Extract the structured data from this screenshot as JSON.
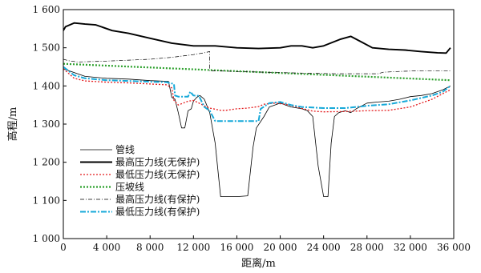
{
  "chart_data": {
    "type": "line",
    "xlabel": "距离/m",
    "ylabel": "高程/m",
    "xlim": [
      0,
      36000
    ],
    "ylim": [
      1000,
      1600
    ],
    "grid": false,
    "legend": "bottom-left",
    "x_ticks": [
      {
        "value": 0,
        "label": "0"
      },
      {
        "value": 4000,
        "label": "4 000"
      },
      {
        "value": 8000,
        "label": "8 000"
      },
      {
        "value": 12000,
        "label": "12 000"
      },
      {
        "value": 16000,
        "label": "16 000"
      },
      {
        "value": 20000,
        "label": "20 000"
      },
      {
        "value": 24000,
        "label": "24 000"
      },
      {
        "value": 28000,
        "label": "28 000"
      },
      {
        "value": 32000,
        "label": "32 000"
      },
      {
        "value": 36000,
        "label": "36 000"
      }
    ],
    "y_ticks": [
      {
        "value": 1000,
        "label": "1 000"
      },
      {
        "value": 1100,
        "label": "1 100"
      },
      {
        "value": 1200,
        "label": "1 200"
      },
      {
        "value": 1300,
        "label": "1 300"
      },
      {
        "value": 1400,
        "label": "1 400"
      },
      {
        "value": 1500,
        "label": "1 500"
      },
      {
        "value": 1600,
        "label": "1 600"
      }
    ],
    "series": [
      {
        "name": "管线",
        "color": "#000000",
        "dash": "",
        "width": 0.8,
        "x": [
          0,
          2000,
          4000,
          6000,
          8000,
          9700,
          10000,
          10300,
          10600,
          10900,
          11200,
          11500,
          11800,
          12000,
          12300,
          12600,
          13000,
          13500,
          14000,
          14500,
          15000,
          16000,
          17000,
          17500,
          17800,
          18500,
          19000,
          20000,
          20500,
          21000,
          22000,
          22500,
          23000,
          23500,
          24000,
          24400,
          24700,
          25000,
          25400,
          26000,
          26500,
          27000,
          28000,
          29000,
          30000,
          31000,
          32000,
          33000,
          34000,
          35000,
          35700
        ],
        "y": [
          1445,
          1425,
          1420,
          1418,
          1414,
          1412,
          1370,
          1365,
          1330,
          1290,
          1290,
          1335,
          1340,
          1360,
          1370,
          1375,
          1365,
          1330,
          1250,
          1110,
          1110,
          1110,
          1112,
          1240,
          1290,
          1320,
          1345,
          1355,
          1350,
          1345,
          1340,
          1335,
          1320,
          1190,
          1110,
          1110,
          1250,
          1320,
          1330,
          1335,
          1330,
          1340,
          1355,
          1358,
          1360,
          1365,
          1372,
          1375,
          1380,
          1390,
          1400
        ]
      },
      {
        "name": "最高压力线(无保护)",
        "color": "#000000",
        "dash": "",
        "width": 1.9,
        "x": [
          0,
          200,
          1000,
          2000,
          3000,
          4500,
          6000,
          8000,
          10000,
          12000,
          14000,
          16000,
          18000,
          20000,
          21000,
          22000,
          23000,
          24000,
          25500,
          26500,
          27500,
          28500,
          30000,
          31500,
          33000,
          34500,
          35300,
          35700
        ],
        "y": [
          1545,
          1555,
          1565,
          1562,
          1560,
          1545,
          1538,
          1525,
          1512,
          1505,
          1505,
          1500,
          1498,
          1500,
          1505,
          1505,
          1500,
          1505,
          1522,
          1530,
          1515,
          1500,
          1496,
          1494,
          1490,
          1487,
          1486,
          1500
        ]
      },
      {
        "name": "最低压力线(无保护)",
        "color": "#e41a1c",
        "dash": "2,2",
        "width": 1.3,
        "x": [
          0,
          1000,
          2000,
          4000,
          6000,
          8000,
          9500,
          10000,
          10200,
          10600,
          11500,
          12000,
          13000,
          13500,
          14500,
          15000,
          16000,
          17000,
          18000,
          18500,
          19500,
          20500,
          21500,
          23000,
          24000,
          26000,
          28000,
          30000,
          32000,
          34000,
          35000,
          35700
        ],
        "y": [
          1445,
          1420,
          1413,
          1410,
          1408,
          1405,
          1403,
          1395,
          1362,
          1350,
          1360,
          1362,
          1348,
          1342,
          1336,
          1336,
          1340,
          1342,
          1346,
          1352,
          1355,
          1352,
          1345,
          1334,
          1332,
          1333,
          1335,
          1336,
          1345,
          1365,
          1380,
          1390
        ]
      },
      {
        "name": "压坡线",
        "color": "#2ca02c",
        "dash": "2,2",
        "width": 2.2,
        "x": [
          0,
          35700
        ],
        "y": [
          1458,
          1415
        ]
      },
      {
        "name": "最高压力线(有保护)",
        "color": "#000000",
        "dash": "5,2,1,2",
        "width": 0.7,
        "x": [
          0,
          500,
          1500,
          1600,
          4000,
          8000,
          10000,
          12000,
          13000,
          13500,
          13500,
          20000,
          25000,
          29000,
          29500,
          31000,
          33000,
          35000,
          35700
        ],
        "y": [
          1470,
          1466,
          1462,
          1463,
          1465,
          1470,
          1475,
          1482,
          1487,
          1490,
          1440,
          1435,
          1432,
          1432,
          1436,
          1438,
          1440,
          1440,
          1440
        ]
      },
      {
        "name": "最低压力线(有保护)",
        "color": "#17a9d9",
        "dash": "7,2,2,2",
        "width": 2.0,
        "x": [
          0,
          1000,
          2000,
          4000,
          6000,
          8000,
          9500,
          10200,
          10300,
          10600,
          11500,
          11700,
          12000,
          12500,
          13000,
          13500,
          14000,
          17000,
          18000,
          18200,
          19000,
          20000,
          21000,
          22000,
          24000,
          26000,
          28000,
          30000,
          32000,
          34000,
          35000,
          35700
        ],
        "y": [
          1450,
          1428,
          1420,
          1415,
          1413,
          1411,
          1410,
          1405,
          1375,
          1372,
          1372,
          1385,
          1375,
          1374,
          1345,
          1335,
          1308,
          1308,
          1308,
          1340,
          1355,
          1358,
          1350,
          1345,
          1342,
          1342,
          1348,
          1352,
          1362,
          1375,
          1385,
          1400
        ]
      }
    ]
  }
}
